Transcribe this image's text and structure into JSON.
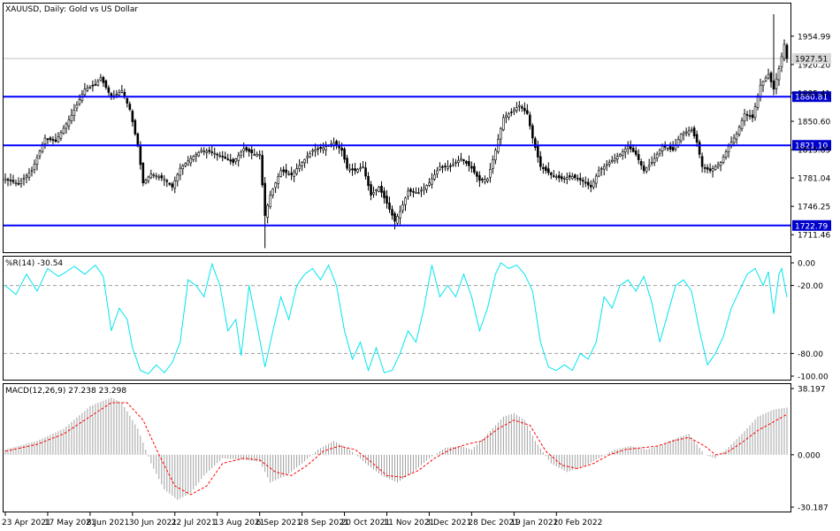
{
  "header": {
    "symbol_title": "XAUUSD, Daily:  Gold vs US Dollar"
  },
  "colors": {
    "background": "#ffffff",
    "frame": "#000000",
    "candle": "#000000",
    "support_line": "#0000ff",
    "support_label_bg": "#0000cc",
    "williams_line": "#00e5ee",
    "macd_histogram": "#a0a0a0",
    "macd_signal": "#ff0000",
    "level_dash": "#a0a0a0"
  },
  "chart_data": [
    {
      "type": "candlestick",
      "title": "XAUUSD, Daily:  Gold vs US Dollar",
      "price_axis_ticks": [
        "1954.99",
        "1920.20",
        "1885.41",
        "1850.60",
        "1815.85",
        "1781.04",
        "1746.25",
        "1711.46"
      ],
      "ylim": [
        1690,
        1995
      ],
      "current_price": "1927.51",
      "horizontal_lines": [
        {
          "value": 1880.81,
          "label": "1880.81"
        },
        {
          "value": 1821.1,
          "label": "1821.10"
        },
        {
          "value": 1722.79,
          "label": "1722.79"
        }
      ],
      "waypoints": [
        {
          "i": 0,
          "v": 1780
        },
        {
          "i": 5,
          "v": 1774
        },
        {
          "i": 10,
          "v": 1790
        },
        {
          "i": 15,
          "v": 1830
        },
        {
          "i": 19,
          "v": 1826
        },
        {
          "i": 25,
          "v": 1858
        },
        {
          "i": 30,
          "v": 1890
        },
        {
          "i": 34,
          "v": 1895
        },
        {
          "i": 36,
          "v": 1904
        },
        {
          "i": 40,
          "v": 1880
        },
        {
          "i": 44,
          "v": 1888
        },
        {
          "i": 47,
          "v": 1865
        },
        {
          "i": 50,
          "v": 1820
        },
        {
          "i": 52,
          "v": 1775
        },
        {
          "i": 55,
          "v": 1786
        },
        {
          "i": 60,
          "v": 1780
        },
        {
          "i": 63,
          "v": 1770
        },
        {
          "i": 66,
          "v": 1793
        },
        {
          "i": 70,
          "v": 1805
        },
        {
          "i": 74,
          "v": 1815
        },
        {
          "i": 78,
          "v": 1813
        },
        {
          "i": 82,
          "v": 1807
        },
        {
          "i": 86,
          "v": 1800
        },
        {
          "i": 90,
          "v": 1817
        },
        {
          "i": 94,
          "v": 1810
        },
        {
          "i": 96,
          "v": 1810
        },
        {
          "i": 98,
          "v": 1735
        },
        {
          "i": 100,
          "v": 1760
        },
        {
          "i": 104,
          "v": 1790
        },
        {
          "i": 108,
          "v": 1785
        },
        {
          "i": 112,
          "v": 1800
        },
        {
          "i": 116,
          "v": 1815
        },
        {
          "i": 120,
          "v": 1818
        },
        {
          "i": 124,
          "v": 1824
        },
        {
          "i": 127,
          "v": 1815
        },
        {
          "i": 129,
          "v": 1793
        },
        {
          "i": 132,
          "v": 1790
        },
        {
          "i": 135,
          "v": 1795
        },
        {
          "i": 138,
          "v": 1760
        },
        {
          "i": 141,
          "v": 1770
        },
        {
          "i": 144,
          "v": 1750
        },
        {
          "i": 147,
          "v": 1728
        },
        {
          "i": 149,
          "v": 1740
        },
        {
          "i": 152,
          "v": 1765
        },
        {
          "i": 156,
          "v": 1763
        },
        {
          "i": 160,
          "v": 1775
        },
        {
          "i": 164,
          "v": 1795
        },
        {
          "i": 168,
          "v": 1795
        },
        {
          "i": 172,
          "v": 1805
        },
        {
          "i": 176,
          "v": 1793
        },
        {
          "i": 179,
          "v": 1778
        },
        {
          "i": 182,
          "v": 1780
        },
        {
          "i": 185,
          "v": 1815
        },
        {
          "i": 188,
          "v": 1855
        },
        {
          "i": 191,
          "v": 1862
        },
        {
          "i": 194,
          "v": 1870
        },
        {
          "i": 197,
          "v": 1860
        },
        {
          "i": 199,
          "v": 1830
        },
        {
          "i": 202,
          "v": 1795
        },
        {
          "i": 206,
          "v": 1785
        },
        {
          "i": 210,
          "v": 1780
        },
        {
          "i": 214,
          "v": 1783
        },
        {
          "i": 218,
          "v": 1777
        },
        {
          "i": 221,
          "v": 1770
        },
        {
          "i": 224,
          "v": 1790
        },
        {
          "i": 228,
          "v": 1800
        },
        {
          "i": 232,
          "v": 1810
        },
        {
          "i": 235,
          "v": 1820
        },
        {
          "i": 238,
          "v": 1810
        },
        {
          "i": 241,
          "v": 1790
        },
        {
          "i": 244,
          "v": 1800
        },
        {
          "i": 248,
          "v": 1820
        },
        {
          "i": 252,
          "v": 1815
        },
        {
          "i": 255,
          "v": 1835
        },
        {
          "i": 259,
          "v": 1840
        },
        {
          "i": 261,
          "v": 1825
        },
        {
          "i": 263,
          "v": 1795
        },
        {
          "i": 266,
          "v": 1790
        },
        {
          "i": 270,
          "v": 1800
        },
        {
          "i": 273,
          "v": 1820
        },
        {
          "i": 276,
          "v": 1835
        },
        {
          "i": 279,
          "v": 1860
        },
        {
          "i": 282,
          "v": 1855
        },
        {
          "i": 285,
          "v": 1895
        },
        {
          "i": 288,
          "v": 1908
        },
        {
          "i": 290,
          "v": 1890
        },
        {
          "i": 292,
          "v": 1915
        },
        {
          "i": 294,
          "v": 1945
        },
        {
          "i": 295,
          "v": 1927.51
        }
      ],
      "spikes": [
        {
          "i": 98,
          "low": 1695
        },
        {
          "i": 290,
          "high": 1982
        },
        {
          "i": 147,
          "low": 1718
        }
      ]
    },
    {
      "type": "line",
      "indicator_label": "%R(14) -30.54",
      "axis_ticks": [
        "0.00",
        "-20.00",
        "-80.00",
        "-100.00"
      ],
      "ylim": [
        -100,
        0
      ],
      "levels": [
        -20,
        -80
      ],
      "waypoints": [
        {
          "i": 0,
          "v": -20
        },
        {
          "i": 4,
          "v": -28
        },
        {
          "i": 8,
          "v": -10
        },
        {
          "i": 12,
          "v": -25
        },
        {
          "i": 16,
          "v": -5
        },
        {
          "i": 20,
          "v": -12
        },
        {
          "i": 23,
          "v": -8
        },
        {
          "i": 26,
          "v": -3
        },
        {
          "i": 30,
          "v": -10
        },
        {
          "i": 34,
          "v": -2
        },
        {
          "i": 37,
          "v": -12
        },
        {
          "i": 40,
          "v": -60
        },
        {
          "i": 43,
          "v": -40
        },
        {
          "i": 46,
          "v": -50
        },
        {
          "i": 48,
          "v": -75
        },
        {
          "i": 51,
          "v": -95
        },
        {
          "i": 54,
          "v": -98
        },
        {
          "i": 57,
          "v": -90
        },
        {
          "i": 60,
          "v": -97
        },
        {
          "i": 63,
          "v": -88
        },
        {
          "i": 66,
          "v": -70
        },
        {
          "i": 69,
          "v": -15
        },
        {
          "i": 72,
          "v": -20
        },
        {
          "i": 75,
          "v": -30
        },
        {
          "i": 78,
          "v": -1
        },
        {
          "i": 81,
          "v": -20
        },
        {
          "i": 84,
          "v": -60
        },
        {
          "i": 87,
          "v": -50
        },
        {
          "i": 89,
          "v": -82
        },
        {
          "i": 92,
          "v": -20
        },
        {
          "i": 95,
          "v": -55
        },
        {
          "i": 98,
          "v": -92
        },
        {
          "i": 101,
          "v": -60
        },
        {
          "i": 104,
          "v": -30
        },
        {
          "i": 107,
          "v": -50
        },
        {
          "i": 110,
          "v": -20
        },
        {
          "i": 113,
          "v": -10
        },
        {
          "i": 116,
          "v": -5
        },
        {
          "i": 119,
          "v": -15
        },
        {
          "i": 122,
          "v": -2
        },
        {
          "i": 125,
          "v": -20
        },
        {
          "i": 128,
          "v": -60
        },
        {
          "i": 131,
          "v": -85
        },
        {
          "i": 134,
          "v": -70
        },
        {
          "i": 137,
          "v": -95
        },
        {
          "i": 140,
          "v": -75
        },
        {
          "i": 143,
          "v": -97
        },
        {
          "i": 146,
          "v": -95
        },
        {
          "i": 149,
          "v": -80
        },
        {
          "i": 152,
          "v": -60
        },
        {
          "i": 155,
          "v": -70
        },
        {
          "i": 158,
          "v": -40
        },
        {
          "i": 161,
          "v": -2
        },
        {
          "i": 164,
          "v": -30
        },
        {
          "i": 167,
          "v": -20
        },
        {
          "i": 170,
          "v": -30
        },
        {
          "i": 173,
          "v": -10
        },
        {
          "i": 176,
          "v": -30
        },
        {
          "i": 179,
          "v": -60
        },
        {
          "i": 182,
          "v": -40
        },
        {
          "i": 185,
          "v": -10
        },
        {
          "i": 187,
          "v": 0
        },
        {
          "i": 190,
          "v": -5
        },
        {
          "i": 193,
          "v": -2
        },
        {
          "i": 196,
          "v": -10
        },
        {
          "i": 199,
          "v": -25
        },
        {
          "i": 202,
          "v": -70
        },
        {
          "i": 205,
          "v": -92
        },
        {
          "i": 208,
          "v": -95
        },
        {
          "i": 211,
          "v": -90
        },
        {
          "i": 214,
          "v": -95
        },
        {
          "i": 217,
          "v": -80
        },
        {
          "i": 220,
          "v": -85
        },
        {
          "i": 223,
          "v": -70
        },
        {
          "i": 226,
          "v": -30
        },
        {
          "i": 229,
          "v": -40
        },
        {
          "i": 232,
          "v": -20
        },
        {
          "i": 235,
          "v": -15
        },
        {
          "i": 238,
          "v": -25
        },
        {
          "i": 241,
          "v": -12
        },
        {
          "i": 244,
          "v": -35
        },
        {
          "i": 247,
          "v": -70
        },
        {
          "i": 250,
          "v": -45
        },
        {
          "i": 253,
          "v": -20
        },
        {
          "i": 256,
          "v": -15
        },
        {
          "i": 259,
          "v": -25
        },
        {
          "i": 262,
          "v": -60
        },
        {
          "i": 265,
          "v": -90
        },
        {
          "i": 268,
          "v": -80
        },
        {
          "i": 271,
          "v": -65
        },
        {
          "i": 274,
          "v": -40
        },
        {
          "i": 277,
          "v": -25
        },
        {
          "i": 280,
          "v": -10
        },
        {
          "i": 283,
          "v": -5
        },
        {
          "i": 286,
          "v": -20
        },
        {
          "i": 288,
          "v": -8
        },
        {
          "i": 290,
          "v": -45
        },
        {
          "i": 292,
          "v": -10
        },
        {
          "i": 293,
          "v": -5
        },
        {
          "i": 295,
          "v": -30.54
        }
      ]
    },
    {
      "type": "bar+line",
      "indicator_label": "MACD(12,26,9) 27.238 23.298",
      "axis_ticks": [
        "38.197",
        "0.000",
        "-30.187"
      ],
      "ylim": [
        -30.187,
        38.197
      ],
      "macd_waypoints": [
        {
          "i": 0,
          "v": 3
        },
        {
          "i": 12,
          "v": 8
        },
        {
          "i": 22,
          "v": 15
        },
        {
          "i": 32,
          "v": 28
        },
        {
          "i": 40,
          "v": 33
        },
        {
          "i": 44,
          "v": 30
        },
        {
          "i": 50,
          "v": 15
        },
        {
          "i": 55,
          "v": -5
        },
        {
          "i": 60,
          "v": -20
        },
        {
          "i": 65,
          "v": -26
        },
        {
          "i": 70,
          "v": -22
        },
        {
          "i": 75,
          "v": -12
        },
        {
          "i": 82,
          "v": -2
        },
        {
          "i": 90,
          "v": -3
        },
        {
          "i": 96,
          "v": -4
        },
        {
          "i": 100,
          "v": -16
        },
        {
          "i": 106,
          "v": -12
        },
        {
          "i": 112,
          "v": -5
        },
        {
          "i": 118,
          "v": 3
        },
        {
          "i": 124,
          "v": 8
        },
        {
          "i": 130,
          "v": 3
        },
        {
          "i": 136,
          "v": -5
        },
        {
          "i": 142,
          "v": -12
        },
        {
          "i": 148,
          "v": -16
        },
        {
          "i": 154,
          "v": -10
        },
        {
          "i": 160,
          "v": -2
        },
        {
          "i": 166,
          "v": 4
        },
        {
          "i": 172,
          "v": 5
        },
        {
          "i": 176,
          "v": 3
        },
        {
          "i": 182,
          "v": 12
        },
        {
          "i": 188,
          "v": 22
        },
        {
          "i": 192,
          "v": 24
        },
        {
          "i": 196,
          "v": 20
        },
        {
          "i": 200,
          "v": 8
        },
        {
          "i": 206,
          "v": -5
        },
        {
          "i": 212,
          "v": -10
        },
        {
          "i": 218,
          "v": -7
        },
        {
          "i": 224,
          "v": -2
        },
        {
          "i": 230,
          "v": 3
        },
        {
          "i": 236,
          "v": 5
        },
        {
          "i": 242,
          "v": 3
        },
        {
          "i": 248,
          "v": 6
        },
        {
          "i": 254,
          "v": 10
        },
        {
          "i": 258,
          "v": 12
        },
        {
          "i": 264,
          "v": 0
        },
        {
          "i": 268,
          "v": -2
        },
        {
          "i": 272,
          "v": 3
        },
        {
          "i": 278,
          "v": 12
        },
        {
          "i": 284,
          "v": 22
        },
        {
          "i": 290,
          "v": 26
        },
        {
          "i": 295,
          "v": 27.238
        }
      ],
      "signal_waypoints": [
        {
          "i": 0,
          "v": 2
        },
        {
          "i": 12,
          "v": 6
        },
        {
          "i": 22,
          "v": 12
        },
        {
          "i": 32,
          "v": 22
        },
        {
          "i": 40,
          "v": 30
        },
        {
          "i": 46,
          "v": 30
        },
        {
          "i": 52,
          "v": 20
        },
        {
          "i": 58,
          "v": 0
        },
        {
          "i": 64,
          "v": -18
        },
        {
          "i": 70,
          "v": -23
        },
        {
          "i": 76,
          "v": -18
        },
        {
          "i": 82,
          "v": -5
        },
        {
          "i": 90,
          "v": -2
        },
        {
          "i": 96,
          "v": -3
        },
        {
          "i": 102,
          "v": -10
        },
        {
          "i": 108,
          "v": -12
        },
        {
          "i": 114,
          "v": -6
        },
        {
          "i": 120,
          "v": 2
        },
        {
          "i": 126,
          "v": 5
        },
        {
          "i": 132,
          "v": 3
        },
        {
          "i": 138,
          "v": -4
        },
        {
          "i": 144,
          "v": -12
        },
        {
          "i": 150,
          "v": -13
        },
        {
          "i": 156,
          "v": -9
        },
        {
          "i": 162,
          "v": -2
        },
        {
          "i": 168,
          "v": 3
        },
        {
          "i": 174,
          "v": 6
        },
        {
          "i": 180,
          "v": 8
        },
        {
          "i": 186,
          "v": 15
        },
        {
          "i": 192,
          "v": 20
        },
        {
          "i": 198,
          "v": 17
        },
        {
          "i": 204,
          "v": 2
        },
        {
          "i": 210,
          "v": -6
        },
        {
          "i": 216,
          "v": -8
        },
        {
          "i": 222,
          "v": -5
        },
        {
          "i": 228,
          "v": 0
        },
        {
          "i": 234,
          "v": 3
        },
        {
          "i": 240,
          "v": 4
        },
        {
          "i": 246,
          "v": 5
        },
        {
          "i": 252,
          "v": 8
        },
        {
          "i": 258,
          "v": 10
        },
        {
          "i": 264,
          "v": 5
        },
        {
          "i": 268,
          "v": 0
        },
        {
          "i": 272,
          "v": 1
        },
        {
          "i": 278,
          "v": 7
        },
        {
          "i": 284,
          "v": 14
        },
        {
          "i": 290,
          "v": 19
        },
        {
          "i": 295,
          "v": 23.298
        }
      ]
    }
  ],
  "time_axis": {
    "labels": [
      "23 Apr 2021",
      "17 May 2021",
      "8 Jun 2021",
      "30 Jun 2021",
      "22 Jul 2021",
      "13 Aug 2021",
      "6 Sep 2021",
      "28 Sep 2021",
      "20 Oct 2021",
      "11 Nov 2021",
      "3 Dec 2021",
      "28 Dec 2021",
      "19 Jan 2022",
      "10 Feb 2022"
    ],
    "bar_index": [
      0,
      16,
      32,
      48,
      64,
      80,
      96,
      112,
      128,
      144,
      160,
      176,
      192,
      208
    ],
    "total_bars": 296
  }
}
